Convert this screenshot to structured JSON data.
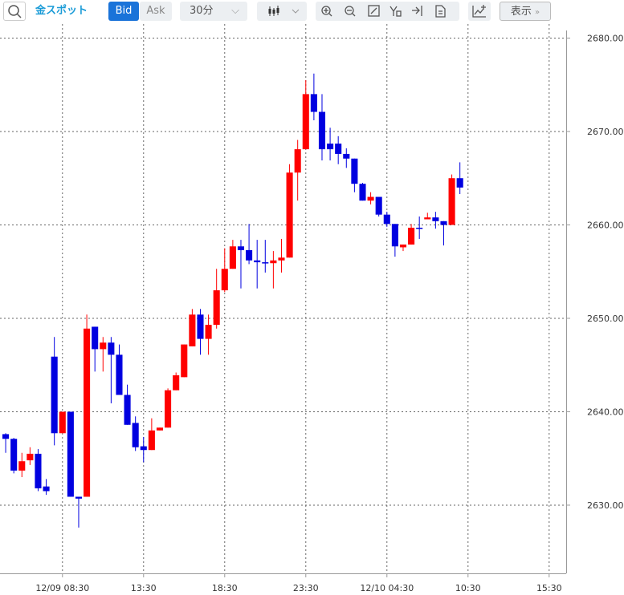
{
  "toolbar": {
    "instrument": "金スポット",
    "bid": "Bid",
    "ask": "Ask",
    "interval": "30分",
    "display": "表示"
  },
  "chart_data": {
    "type": "candlestick",
    "x": [
      0,
      1,
      2,
      3,
      4,
      5,
      6,
      7,
      8,
      9,
      10,
      11,
      12,
      13,
      14,
      15,
      16,
      17,
      18,
      19,
      20,
      21,
      22,
      23,
      24,
      25,
      26,
      27,
      28,
      29,
      30,
      31,
      32,
      33,
      34,
      35,
      36,
      37,
      38,
      39,
      40,
      41,
      42,
      43,
      44,
      45,
      46,
      47,
      48,
      49,
      50,
      51,
      52,
      53,
      54,
      55,
      56
    ],
    "open": [
      2637.6,
      2637.1,
      2633.7,
      2634.8,
      2635.5,
      2632.0,
      2645.9,
      2637.7,
      2640.0,
      2630.9,
      2630.9,
      2649.1,
      2646.7,
      2647.4,
      2646.1,
      2641.8,
      2638.8,
      2636.3,
      2635.9,
      2638.0,
      2638.3,
      2642.3,
      2643.7,
      2647.0,
      2650.4,
      2647.8,
      2649.3,
      2653.0,
      2655.3,
      2657.7,
      2657.3,
      2656.2,
      2656.0,
      2655.9,
      2656.2,
      2656.5,
      2665.6,
      2668.1,
      2674.0,
      2672.1,
      2668.7,
      2668.7,
      2667.6,
      2667.1,
      2664.4,
      2662.6,
      2663.0,
      2661.1,
      2660.1,
      2657.6,
      2657.9,
      2659.7,
      2660.6,
      2660.8,
      2660.4,
      2660.0,
      2665.0
    ],
    "high": [
      2637.7,
      2637.2,
      2635.6,
      2636.2,
      2636.0,
      2632.8,
      2648.0,
      2640.0,
      2640.0,
      2630.9,
      2650.4,
      2649.1,
      2648.0,
      2648.0,
      2647.2,
      2642.9,
      2639.5,
      2637.3,
      2639.3,
      2638.3,
      2642.5,
      2644.2,
      2647.2,
      2651.0,
      2651.0,
      2650.4,
      2655.3,
      2657.5,
      2658.4,
      2658.4,
      2660.1,
      2658.4,
      2658.4,
      2657.2,
      2658.5,
      2666.5,
      2669.1,
      2675.5,
      2676.2,
      2674.0,
      2670.4,
      2669.5,
      2668.2,
      2667.1,
      2664.5,
      2663.5,
      2663.0,
      2661.4,
      2660.1,
      2657.9,
      2660.1,
      2660.9,
      2661.3,
      2661.4,
      2660.4,
      2665.4,
      2666.7
    ],
    "low": [
      2635.6,
      2633.4,
      2633.0,
      2634.3,
      2631.5,
      2631.1,
      2636.4,
      2637.7,
      2630.9,
      2627.6,
      2630.9,
      2644.3,
      2644.3,
      2640.9,
      2641.8,
      2638.6,
      2635.8,
      2634.6,
      2635.9,
      2638.0,
      2638.3,
      2642.3,
      2643.7,
      2647.0,
      2646.1,
      2646.1,
      2648.9,
      2652.8,
      2655.3,
      2653.2,
      2655.8,
      2653.2,
      2654.9,
      2653.2,
      2654.9,
      2656.5,
      2662.6,
      2668.1,
      2671.2,
      2666.9,
      2666.9,
      2666.5,
      2666.1,
      2663.5,
      2662.6,
      2662.2,
      2660.9,
      2659.8,
      2656.6,
      2657.2,
      2657.9,
      2658.5,
      2660.6,
      2659.6,
      2657.8,
      2660.0,
      2663.3
    ],
    "close": [
      2637.1,
      2633.7,
      2634.7,
      2635.5,
      2631.8,
      2631.5,
      2637.7,
      2640.0,
      2630.9,
      2630.7,
      2648.9,
      2646.7,
      2647.4,
      2646.1,
      2641.8,
      2638.6,
      2636.2,
      2635.9,
      2638.0,
      2638.3,
      2642.3,
      2643.9,
      2647.2,
      2650.4,
      2647.8,
      2649.3,
      2653.0,
      2655.3,
      2657.7,
      2657.3,
      2656.2,
      2656.0,
      2655.9,
      2656.2,
      2656.5,
      2665.6,
      2668.1,
      2674.0,
      2672.1,
      2668.1,
      2668.1,
      2667.6,
      2667.1,
      2664.4,
      2662.6,
      2663.0,
      2661.1,
      2660.1,
      2657.7,
      2657.9,
      2659.7,
      2659.6,
      2660.8,
      2660.4,
      2660.0,
      2665.0,
      2664.0
    ],
    "up_color": "#ff0000",
    "down_color": "#0000e0",
    "xlim": [
      -0.7,
      69.1
    ],
    "xticks": [
      {
        "value": 7,
        "label": "12/09 08:30"
      },
      {
        "value": 17,
        "label": "13:30"
      },
      {
        "value": 27,
        "label": "18:30"
      },
      {
        "value": 37,
        "label": "23:30"
      },
      {
        "value": 47,
        "label": "12/10 04:30"
      },
      {
        "value": 57,
        "label": "10:30"
      },
      {
        "value": 67,
        "label": "15:30"
      }
    ],
    "ylim": [
      2622.7,
      2681.5
    ],
    "yticks": [
      {
        "value": 2630,
        "label": "2630.00"
      },
      {
        "value": 2640,
        "label": "2640.00"
      },
      {
        "value": 2650,
        "label": "2650.00"
      },
      {
        "value": 2660,
        "label": "2660.00"
      },
      {
        "value": 2670,
        "label": "2670.00"
      },
      {
        "value": 2680,
        "label": "2680.00"
      }
    ],
    "grid": true
  }
}
